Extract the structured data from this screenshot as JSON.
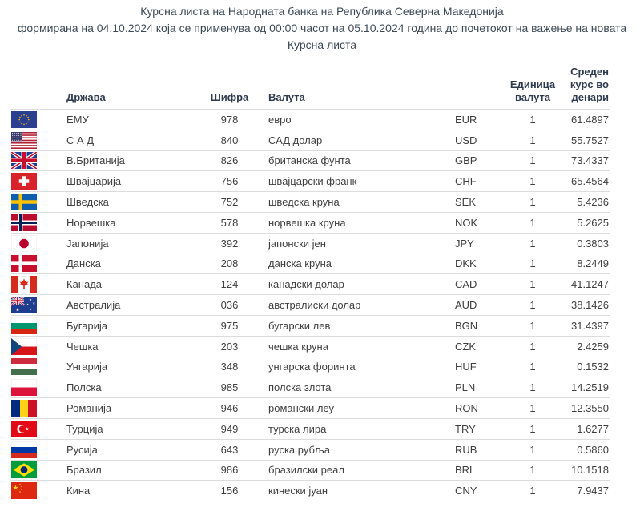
{
  "page": {
    "title_line1": "Курсна листа на Народната банка на Република Северна Македонија",
    "title_line2": "формирана на 04.10.2024 која се применува од 00:00 часот на 05.10.2024 година до почетокот на важење на новата",
    "title_line3": "Курсна листа"
  },
  "table": {
    "headers": {
      "country": "Држава",
      "code": "Шифра",
      "currency": "Валута",
      "iso": "",
      "unit": "Единица валута",
      "rate": "Среден курс во денари"
    },
    "rows": [
      {
        "flag": "flag-eu",
        "country": "ЕМУ",
        "code": "978",
        "currency": "евро",
        "iso": "EUR",
        "unit": "1",
        "rate": "61.4897"
      },
      {
        "flag": "flag-usa",
        "country": "С А Д",
        "code": "840",
        "currency": "САД долар",
        "iso": "USD",
        "unit": "1",
        "rate": "55.7527"
      },
      {
        "flag": "flag-uk",
        "country": "В.Британија",
        "code": "826",
        "currency": "британска фунта",
        "iso": "GBP",
        "unit": "1",
        "rate": "73.4337"
      },
      {
        "flag": "flag-switzerland",
        "country": "Швајцарија",
        "code": "756",
        "currency": "швајцарски франк",
        "iso": "CHF",
        "unit": "1",
        "rate": "65.4564"
      },
      {
        "flag": "flag-sweden",
        "country": "Шведска",
        "code": "752",
        "currency": "шведска круна",
        "iso": "SEK",
        "unit": "1",
        "rate": "5.4236"
      },
      {
        "flag": "flag-norway",
        "country": "Норвешка",
        "code": "578",
        "currency": "норвешка круна",
        "iso": "NOK",
        "unit": "1",
        "rate": "5.2625"
      },
      {
        "flag": "flag-japan",
        "country": "Јапонија",
        "code": "392",
        "currency": "јапонски јен",
        "iso": "JPY",
        "unit": "1",
        "rate": "0.3803"
      },
      {
        "flag": "flag-denmark",
        "country": "Данска",
        "code": "208",
        "currency": "данска круна",
        "iso": "DKK",
        "unit": "1",
        "rate": "8.2449"
      },
      {
        "flag": "flag-canada",
        "country": "Канада",
        "code": "124",
        "currency": "канадски долар",
        "iso": "CAD",
        "unit": "1",
        "rate": "41.1247"
      },
      {
        "flag": "flag-australia",
        "country": "Австралија",
        "code": "036",
        "currency": "австралиски долар",
        "iso": "AUD",
        "unit": "1",
        "rate": "38.1426"
      },
      {
        "flag": "flag-bulgaria",
        "country": "Бугарија",
        "code": "975",
        "currency": "бугарски лев",
        "iso": "BGN",
        "unit": "1",
        "rate": "31.4397"
      },
      {
        "flag": "flag-czechia",
        "country": "Чешка",
        "code": "203",
        "currency": "чешка круна",
        "iso": "CZK",
        "unit": "1",
        "rate": "2.4259"
      },
      {
        "flag": "flag-hungary",
        "country": "Унгарија",
        "code": "348",
        "currency": "унгарска форинта",
        "iso": "HUF",
        "unit": "1",
        "rate": "0.1532"
      },
      {
        "flag": "flag-poland",
        "country": "Полска",
        "code": "985",
        "currency": "полска злота",
        "iso": "PLN",
        "unit": "1",
        "rate": "14.2519"
      },
      {
        "flag": "flag-romania",
        "country": "Романија",
        "code": "946",
        "currency": "романски леу",
        "iso": "RON",
        "unit": "1",
        "rate": "12.3550"
      },
      {
        "flag": "flag-turkey",
        "country": "Турција",
        "code": "949",
        "currency": "турска лира",
        "iso": "TRY",
        "unit": "1",
        "rate": "1.6277"
      },
      {
        "flag": "flag-russia",
        "country": "Русија",
        "code": "643",
        "currency": "руска рубља",
        "iso": "RUB",
        "unit": "1",
        "rate": "0.5860"
      },
      {
        "flag": "flag-brazil",
        "country": "Бразил",
        "code": "986",
        "currency": "бразилски реал",
        "iso": "BRL",
        "unit": "1",
        "rate": "10.1518"
      },
      {
        "flag": "flag-china",
        "country": "Кина",
        "code": "156",
        "currency": "кинески јуан",
        "iso": "CNY",
        "unit": "1",
        "rate": "7.9437"
      }
    ]
  },
  "colors": {
    "title_text": "#3c4a56",
    "header_text": "#2e3a4e",
    "body_text": "#3f3f3f",
    "divider": "#dcdcdc"
  }
}
